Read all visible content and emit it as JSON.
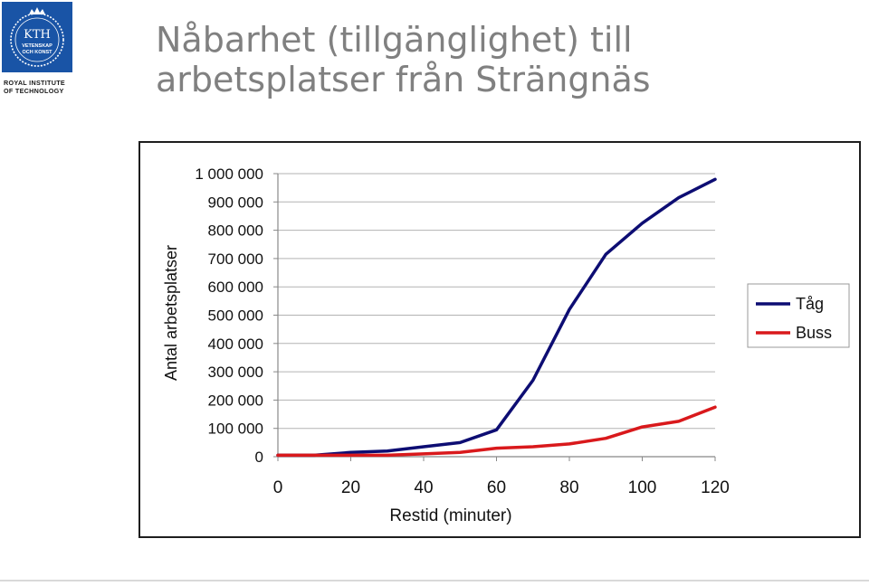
{
  "logo": {
    "emblem_text": [
      "KTH",
      "VETENSKAP",
      "OCH KONST"
    ],
    "line1": "ROYAL INSTITUTE",
    "line2": "OF TECHNOLOGY"
  },
  "slide": {
    "title": "Nåbarhet (tillgänglighet) till arbetsplatser från Strängnäs"
  },
  "colors": {
    "logo_blue": "#1954a6",
    "title_gray": "#808080",
    "tag_line": "#0d0d73",
    "buss_line": "#d9191c"
  },
  "chart_data": {
    "type": "line",
    "xlabel": "Restid (minuter)",
    "ylabel": "Antal arbetsplatser",
    "xlim": [
      0,
      120
    ],
    "ylim": [
      0,
      1000000
    ],
    "x_ticks": [
      0,
      20,
      40,
      60,
      80,
      100,
      120
    ],
    "x_tick_labels": [
      "0",
      "20",
      "40",
      "60",
      "80",
      "100",
      "120"
    ],
    "y_ticks": [
      0,
      100000,
      200000,
      300000,
      400000,
      500000,
      600000,
      700000,
      800000,
      900000,
      1000000
    ],
    "y_tick_labels": [
      "0",
      "100 000",
      "200 000",
      "300 000",
      "400 000",
      "500 000",
      "600 000",
      "700 000",
      "800 000",
      "900 000",
      "1 000 000"
    ],
    "grid": "horizontal",
    "legend_position": "right",
    "x": [
      0,
      10,
      20,
      30,
      40,
      50,
      60,
      70,
      80,
      90,
      100,
      110,
      120
    ],
    "series": [
      {
        "name": "Tåg",
        "color": "#0d0d73",
        "values": [
          5000,
          5000,
          15000,
          20000,
          35000,
          50000,
          95000,
          270000,
          520000,
          715000,
          825000,
          915000,
          980000
        ]
      },
      {
        "name": "Buss",
        "color": "#d9191c",
        "values": [
          5000,
          5000,
          5000,
          5000,
          10000,
          15000,
          30000,
          35000,
          45000,
          65000,
          105000,
          125000,
          175000
        ]
      }
    ]
  }
}
